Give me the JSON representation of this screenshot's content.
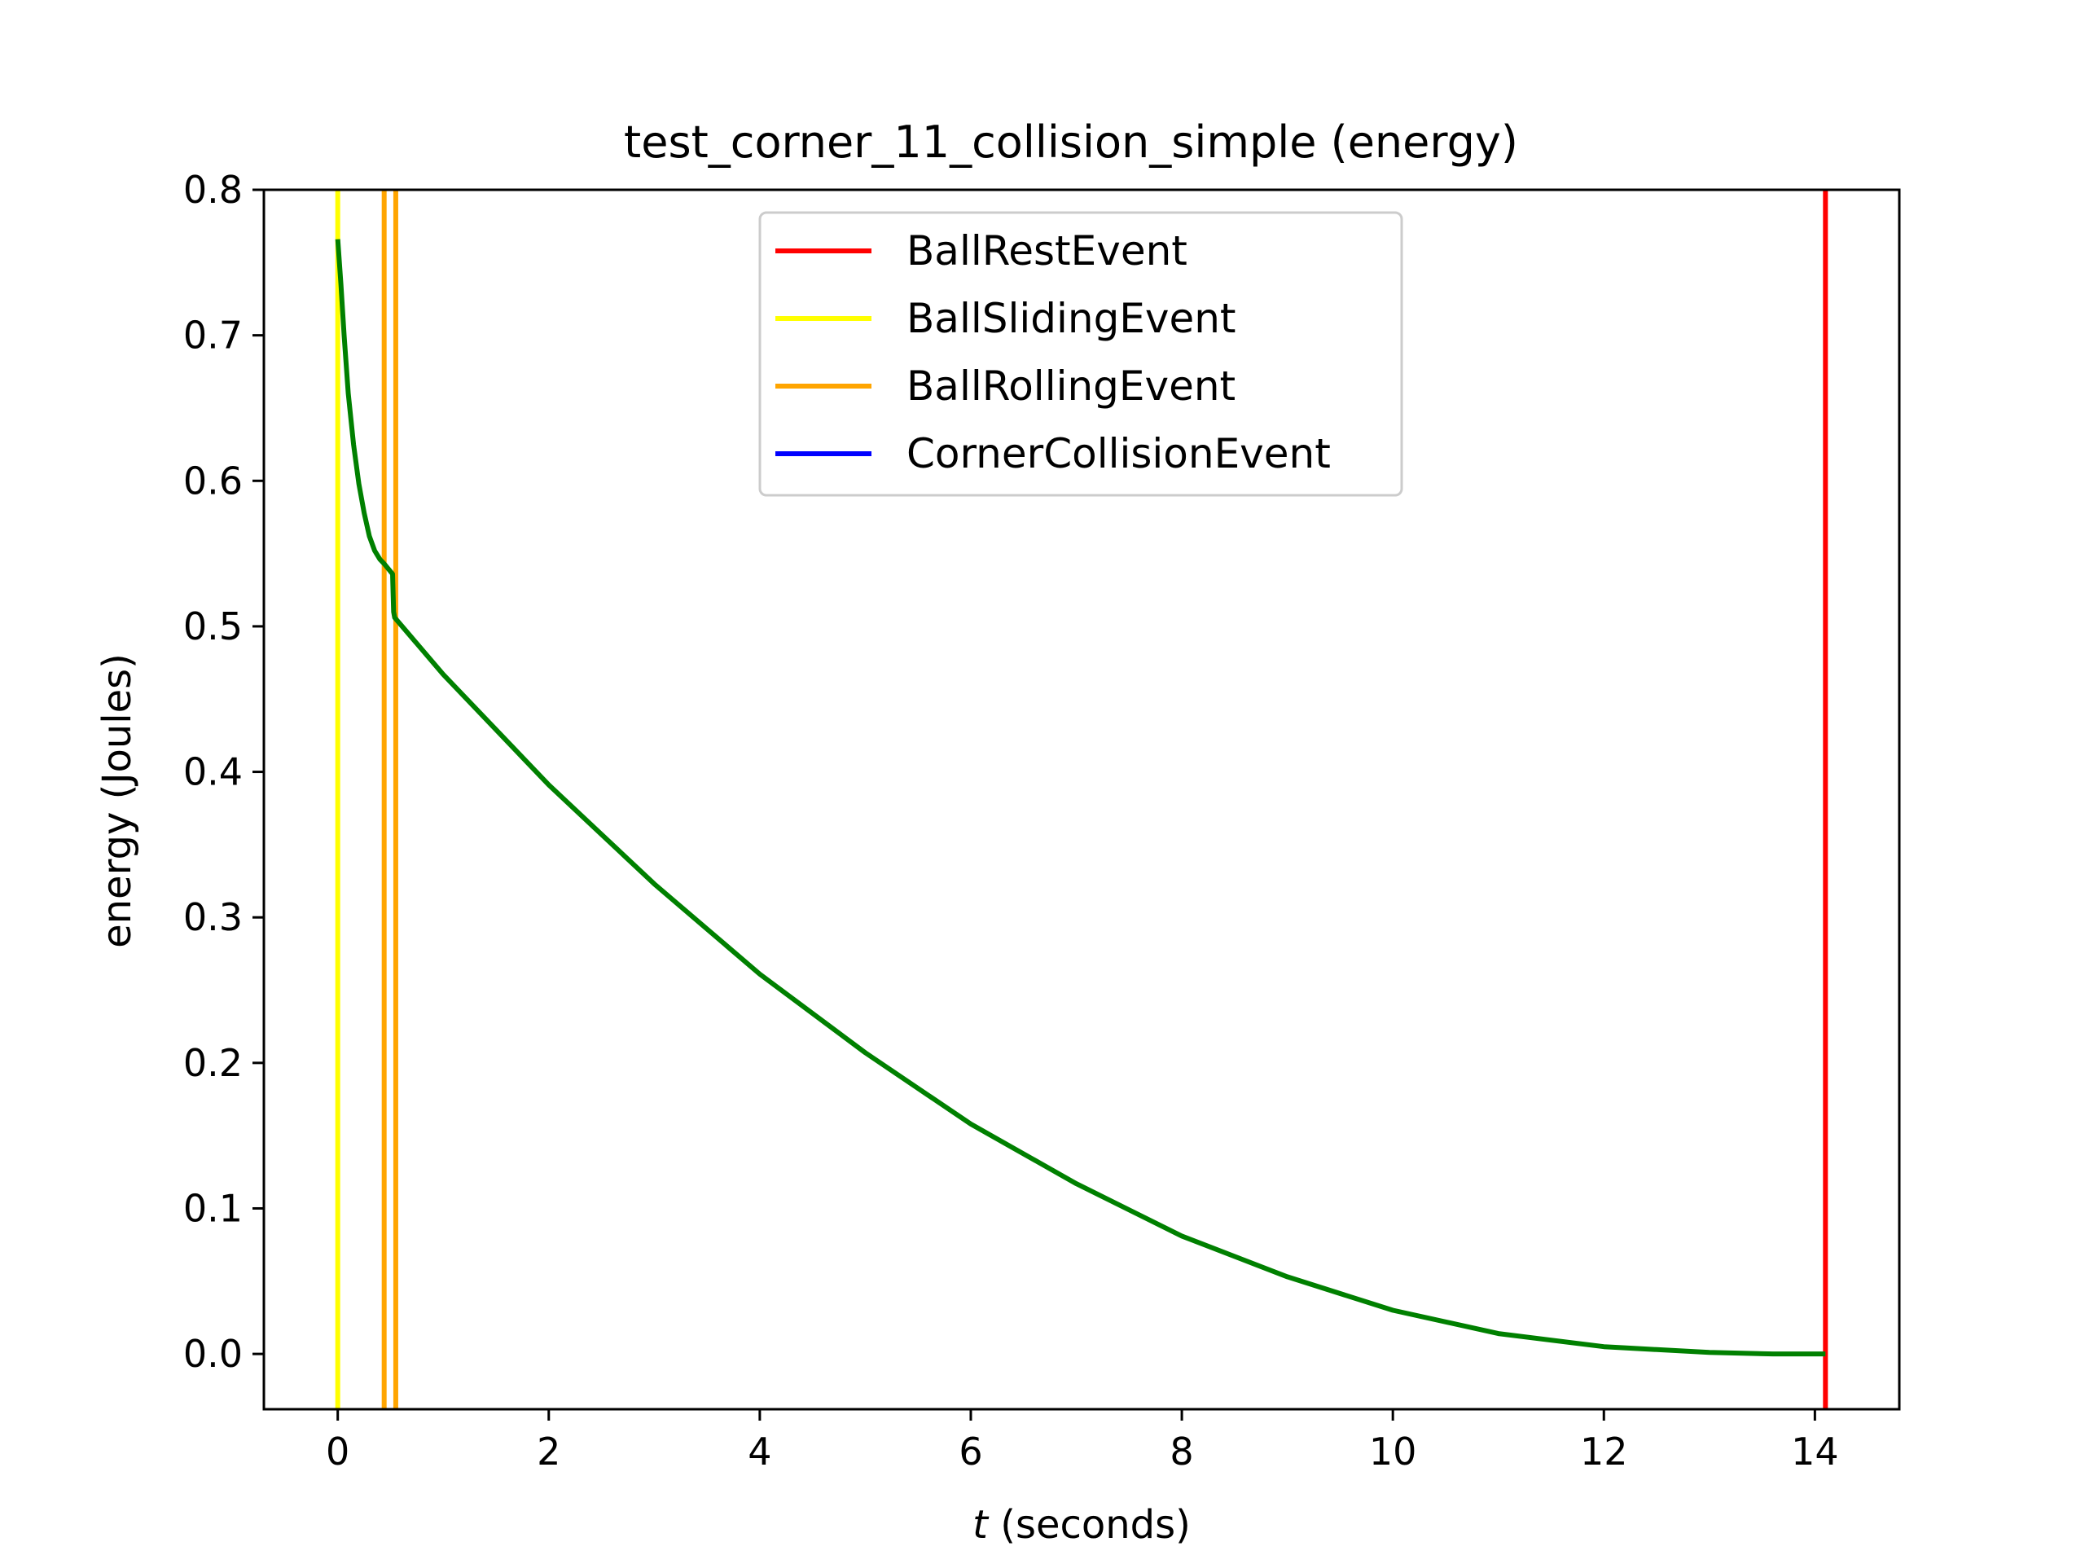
{
  "chart_data": {
    "type": "line",
    "title": "test_corner_11_collision_simple (energy)",
    "xlabel_var": "t",
    "xlabel_unit": " (seconds)",
    "ylabel": "energy (Joules)",
    "xlim": [
      -0.7,
      14.8
    ],
    "ylim": [
      -0.038,
      0.8
    ],
    "x_ticks": [
      0,
      2,
      4,
      6,
      8,
      10,
      12,
      14
    ],
    "x_tick_labels": [
      "0",
      "2",
      "4",
      "6",
      "8",
      "10",
      "12",
      "14"
    ],
    "y_ticks": [
      0.0,
      0.1,
      0.2,
      0.3,
      0.4,
      0.5,
      0.6,
      0.7,
      0.8
    ],
    "y_tick_labels": [
      "0.0",
      "0.1",
      "0.2",
      "0.3",
      "0.4",
      "0.5",
      "0.6",
      "0.7",
      "0.8"
    ],
    "grid": false,
    "legend_position": "upper-center",
    "legend": [
      {
        "label": "BallRestEvent",
        "color": "#ff0000"
      },
      {
        "label": "BallSlidingEvent",
        "color": "#ffff00"
      },
      {
        "label": "BallRollingEvent",
        "color": "#ffa500"
      },
      {
        "label": "CornerCollisionEvent",
        "color": "#0000ff"
      }
    ],
    "event_lines": [
      {
        "event": "BallSlidingEvent",
        "x": 0.0,
        "color": "#ffff00"
      },
      {
        "event": "BallRollingEvent",
        "x": 0.44,
        "color": "#ffa500"
      },
      {
        "event": "BallRollingEvent",
        "x": 0.55,
        "color": "#ffa500"
      },
      {
        "event": "BallRestEvent",
        "x": 14.1,
        "color": "#ff0000"
      }
    ],
    "series": [
      {
        "color": "#008000",
        "x": [
          0.0,
          0.03,
          0.06,
          0.1,
          0.15,
          0.2,
          0.25,
          0.3,
          0.35,
          0.4,
          0.44,
          0.52,
          0.53,
          0.54,
          1.0,
          2.0,
          3.0,
          4.0,
          5.0,
          6.0,
          7.0,
          8.0,
          9.0,
          10.0,
          11.0,
          12.0,
          13.0,
          13.6,
          14.1
        ],
        "y": [
          0.766,
          0.735,
          0.7,
          0.66,
          0.625,
          0.598,
          0.578,
          0.562,
          0.552,
          0.546,
          0.543,
          0.536,
          0.51,
          0.506,
          0.467,
          0.391,
          0.323,
          0.261,
          0.207,
          0.158,
          0.117,
          0.081,
          0.053,
          0.03,
          0.014,
          0.005,
          0.001,
          0.0,
          0.0
        ]
      }
    ]
  }
}
